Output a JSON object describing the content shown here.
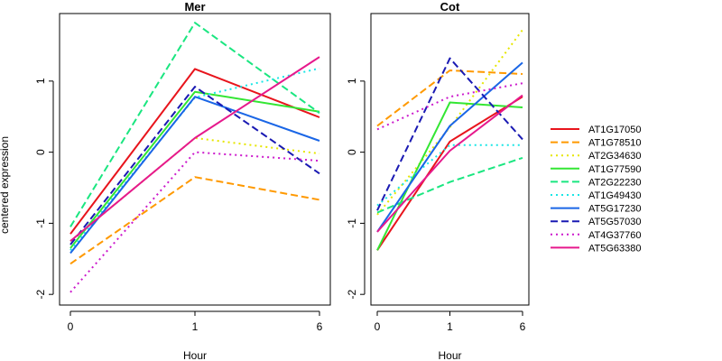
{
  "chart_data": [
    {
      "type": "line",
      "title": "Mer",
      "xlabel": "Hour",
      "ylabel": "centered expression",
      "categories": [
        "0",
        "1",
        "6"
      ],
      "ylim": [
        -2.15,
        1.95
      ],
      "yticks": [
        "-2",
        "-1",
        "0",
        "1"
      ],
      "series": [
        {
          "name": "AT1G17050",
          "values": [
            -1.15,
            1.17,
            0.49
          ]
        },
        {
          "name": "AT1G78510",
          "values": [
            -1.57,
            -0.35,
            -0.67
          ]
        },
        {
          "name": "AT2G34630",
          "values": [
            -1.25,
            0.2,
            -0.02
          ]
        },
        {
          "name": "AT1G77590",
          "values": [
            -1.35,
            0.85,
            0.57
          ]
        },
        {
          "name": "AT2G22230",
          "values": [
            -1.05,
            1.82,
            0.55
          ]
        },
        {
          "name": "AT1G49430",
          "values": [
            -1.38,
            0.77,
            1.18
          ]
        },
        {
          "name": "AT5G17230",
          "values": [
            -1.42,
            0.78,
            0.16
          ]
        },
        {
          "name": "AT5G57030",
          "values": [
            -1.3,
            0.92,
            -0.3
          ]
        },
        {
          "name": "AT4G37760",
          "values": [
            -1.97,
            0.0,
            -0.12
          ]
        },
        {
          "name": "AT5G63380",
          "values": [
            -1.25,
            0.2,
            1.34
          ]
        }
      ]
    },
    {
      "type": "line",
      "title": "Cot",
      "xlabel": "Hour",
      "ylabel": "",
      "categories": [
        "0",
        "1",
        "6"
      ],
      "ylim": [
        -2.15,
        1.95
      ],
      "yticks": [
        "-2",
        "-1",
        "0",
        "1"
      ],
      "series": [
        {
          "name": "AT1G17050",
          "values": [
            -1.38,
            0.15,
            0.78
          ]
        },
        {
          "name": "AT1G78510",
          "values": [
            0.37,
            1.15,
            1.1
          ]
        },
        {
          "name": "AT2G34630",
          "values": [
            -0.88,
            0.35,
            1.72
          ]
        },
        {
          "name": "AT1G77590",
          "values": [
            -1.38,
            0.7,
            0.63
          ]
        },
        {
          "name": "AT2G22230",
          "values": [
            -0.85,
            -0.42,
            -0.08
          ]
        },
        {
          "name": "AT1G49430",
          "values": [
            -0.75,
            0.1,
            0.1
          ]
        },
        {
          "name": "AT5G17230",
          "values": [
            -1.12,
            0.37,
            1.26
          ]
        },
        {
          "name": "AT5G57030",
          "values": [
            -0.82,
            1.32,
            0.18
          ]
        },
        {
          "name": "AT4G37760",
          "values": [
            0.32,
            0.78,
            0.97
          ]
        },
        {
          "name": "AT5G63380",
          "values": [
            -1.12,
            0.02,
            0.8
          ]
        }
      ]
    }
  ],
  "legend": {
    "position": "right",
    "entries": [
      {
        "name": "AT1G17050",
        "color": "#e8141c",
        "dash": "solid"
      },
      {
        "name": "AT1G78510",
        "color": "#ff9900",
        "dash": "dashed"
      },
      {
        "name": "AT2G34630",
        "color": "#e6e600",
        "dash": "dotted"
      },
      {
        "name": "AT1G77590",
        "color": "#33e633",
        "dash": "solid"
      },
      {
        "name": "AT2G22230",
        "color": "#1ae680",
        "dash": "dashed"
      },
      {
        "name": "AT1G49430",
        "color": "#1ae6e6",
        "dash": "dotted"
      },
      {
        "name": "AT5G17230",
        "color": "#1a66e6",
        "dash": "solid"
      },
      {
        "name": "AT5G57030",
        "color": "#1a1ab3",
        "dash": "dashed"
      },
      {
        "name": "AT4G37760",
        "color": "#cc1acc",
        "dash": "dotted"
      },
      {
        "name": "AT5G63380",
        "color": "#e6198c",
        "dash": "solid"
      }
    ]
  }
}
